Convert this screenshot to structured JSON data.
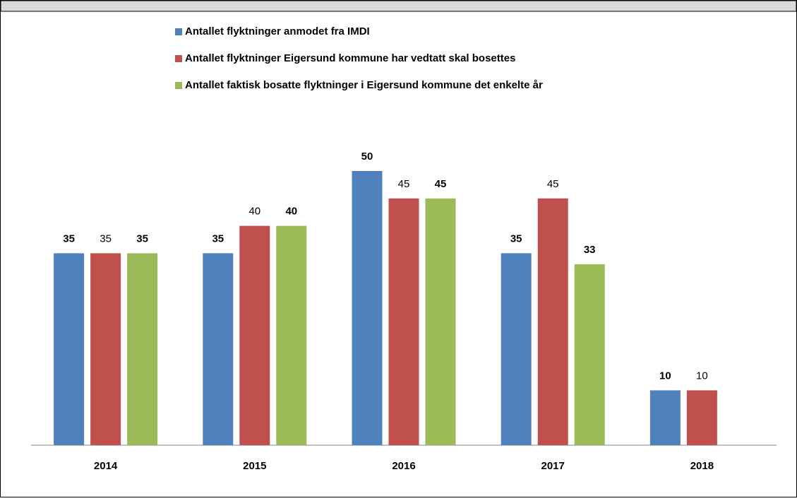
{
  "chart_data": {
    "type": "bar",
    "categories": [
      "2014",
      "2015",
      "2016",
      "2017",
      "2018"
    ],
    "series": [
      {
        "name": "Antallet flyktninger anmodet fra IMDI",
        "color": "#4f81bd",
        "bold": true,
        "values": [
          35,
          35,
          50,
          35,
          10
        ]
      },
      {
        "name": "Antallet flyktninger Eigersund kommune har vedtatt skal bosettes",
        "color": "#c0504d",
        "bold": false,
        "values": [
          35,
          40,
          45,
          45,
          10
        ]
      },
      {
        "name": "Antallet faktisk bosatte flyktninger i Eigersund kommune det enkelte år",
        "color": "#9bbb59",
        "bold": true,
        "values": [
          35,
          40,
          45,
          33,
          null
        ]
      }
    ]
  }
}
